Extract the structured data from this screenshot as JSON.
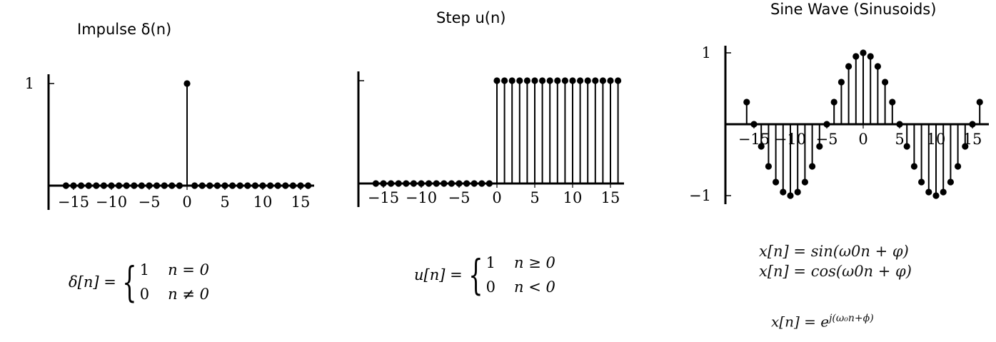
{
  "chart_data": [
    {
      "type": "stem",
      "title": "Impulse δ(n)",
      "x": [
        -16,
        -15,
        -14,
        -13,
        -12,
        -11,
        -10,
        -9,
        -8,
        -7,
        -6,
        -5,
        -4,
        -3,
        -2,
        -1,
        0,
        1,
        2,
        3,
        4,
        5,
        6,
        7,
        8,
        9,
        10,
        11,
        12,
        13,
        14,
        15,
        16
      ],
      "y": [
        0,
        0,
        0,
        0,
        0,
        0,
        0,
        0,
        0,
        0,
        0,
        0,
        0,
        0,
        0,
        0,
        1,
        0,
        0,
        0,
        0,
        0,
        0,
        0,
        0,
        0,
        0,
        0,
        0,
        0,
        0,
        0,
        0
      ],
      "xticks": [
        "−15",
        "−10",
        "−5",
        "0",
        "5",
        "10",
        "15"
      ],
      "xtick_values": [
        -15,
        -10,
        -5,
        0,
        5,
        10,
        15
      ],
      "yticks": [
        "1"
      ],
      "ytick_values": [
        1
      ],
      "xlim": [
        -17,
        17.5
      ],
      "ylim": [
        0,
        1
      ],
      "grid": false
    },
    {
      "type": "stem",
      "title": "Step u(n)",
      "x": [
        -16,
        -15,
        -14,
        -13,
        -12,
        -11,
        -10,
        -9,
        -8,
        -7,
        -6,
        -5,
        -4,
        -3,
        -2,
        -1,
        0,
        1,
        2,
        3,
        4,
        5,
        6,
        7,
        8,
        9,
        10,
        11,
        12,
        13,
        14,
        15,
        16
      ],
      "y": [
        0,
        0,
        0,
        0,
        0,
        0,
        0,
        0,
        0,
        0,
        0,
        0,
        0,
        0,
        0,
        0,
        1,
        1,
        1,
        1,
        1,
        1,
        1,
        1,
        1,
        1,
        1,
        1,
        1,
        1,
        1,
        1,
        1
      ],
      "xticks": [
        "−15",
        "−10",
        "−5",
        "0",
        "5",
        "10",
        "15"
      ],
      "xtick_values": [
        -15,
        -10,
        -5,
        0,
        5,
        10,
        15
      ],
      "yticks": [
        ""
      ],
      "ytick_values": [
        1
      ],
      "xlim": [
        -17,
        17
      ],
      "ylim": [
        0,
        1
      ],
      "grid": false
    },
    {
      "type": "stem",
      "title": "Sine Wave (Sinusoids)",
      "x": [
        -16,
        -15,
        -14,
        -13,
        -12,
        -11,
        -10,
        -9,
        -8,
        -7,
        -6,
        -5,
        -4,
        -3,
        -2,
        -1,
        0,
        1,
        2,
        3,
        4,
        5,
        6,
        7,
        8,
        9,
        10,
        11,
        12,
        13,
        14,
        15,
        16
      ],
      "y": [
        0.31,
        0.0,
        -0.31,
        -0.59,
        -0.81,
        -0.95,
        -1.0,
        -0.95,
        -0.81,
        -0.59,
        -0.31,
        0.0,
        0.31,
        0.59,
        0.81,
        0.95,
        1.0,
        0.95,
        0.81,
        0.59,
        0.31,
        0.0,
        -0.31,
        -0.59,
        -0.81,
        -0.95,
        -1.0,
        -0.95,
        -0.81,
        -0.59,
        -0.31,
        0.0,
        0.31
      ],
      "xticks": [
        "−15",
        "−10",
        "−5",
        "0",
        "5",
        "10",
        "15"
      ],
      "xtick_values": [
        -15,
        -10,
        -5,
        0,
        5,
        10,
        15
      ],
      "yticks": [
        "1",
        "−1"
      ],
      "ytick_values": [
        1,
        -1
      ],
      "xlim": [
        -17,
        16
      ],
      "ylim": [
        -1,
        1
      ],
      "grid": false
    }
  ],
  "formulas": {
    "impulse": {
      "lhs": "δ[n] =",
      "cases": [
        {
          "value": "1",
          "condition": "n = 0"
        },
        {
          "value": "0",
          "condition": "n ≠ 0"
        }
      ]
    },
    "step": {
      "lhs": "u[n] =",
      "cases": [
        {
          "value": "1",
          "condition": "n ≥ 0"
        },
        {
          "value": "0",
          "condition": "n < 0"
        }
      ]
    },
    "sine": {
      "line1": "x[n] = sin(ω0n + φ)",
      "line2": "x[n] = cos(ω0n + φ)",
      "complex_base": "x[n] = e",
      "complex_exp": "j(ω₀n+ϕ)"
    }
  },
  "colors": {
    "ink": "#000000"
  }
}
